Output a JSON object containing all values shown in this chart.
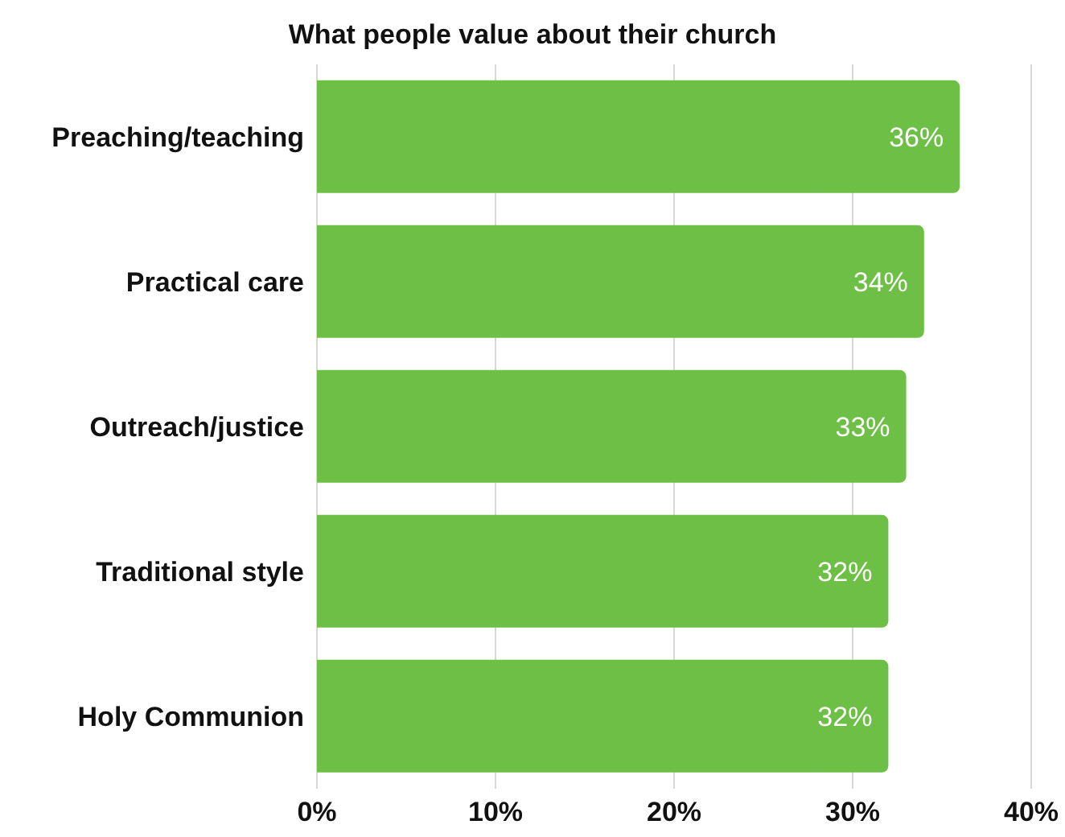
{
  "chart_data": {
    "type": "bar",
    "orientation": "horizontal",
    "title": "What people value about their church",
    "categories": [
      "Preaching/teaching",
      "Practical care",
      "Outreach/justice",
      "Traditional style",
      "Holy Communion"
    ],
    "values": [
      36,
      34,
      33,
      32,
      32
    ],
    "value_labels": [
      "36%",
      "34%",
      "33%",
      "32%",
      "32%"
    ],
    "color": "#6dbf45",
    "xlim": [
      0,
      40
    ],
    "xticks": [
      {
        "value": 0,
        "label": "0%"
      },
      {
        "value": 10,
        "label": "10%"
      },
      {
        "value": 20,
        "label": "20%"
      },
      {
        "value": 30,
        "label": "30%"
      },
      {
        "value": 40,
        "label": "40%"
      }
    ],
    "grid": "x",
    "legend": false
  }
}
